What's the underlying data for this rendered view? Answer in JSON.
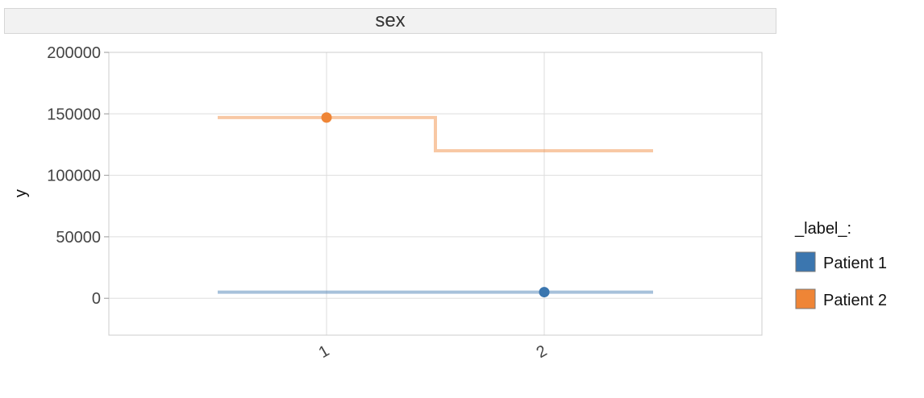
{
  "chart_data": {
    "type": "line",
    "facet_label": "sex",
    "ylabel": "y",
    "xlabel": "",
    "ylim": [
      -30000,
      200000
    ],
    "y_ticks": [
      "200000",
      "150000",
      "100000",
      "50000",
      "0"
    ],
    "y_tick_values": [
      200000,
      150000,
      100000,
      50000,
      0
    ],
    "x_ticks": [
      "1",
      "2"
    ],
    "x_tick_values": [
      1,
      2
    ],
    "xlim": [
      0,
      3
    ],
    "grid": true,
    "legend_title": "_label_:",
    "legend_position": "right",
    "series": [
      {
        "name": "Patient 1",
        "color": "#3b76af",
        "step_x": [
          0.5,
          2.5
        ],
        "step_y": [
          5000,
          5000
        ],
        "point": {
          "x": 2,
          "y": 5000
        }
      },
      {
        "name": "Patient 2",
        "color": "#ef8536",
        "step_x": [
          0.5,
          1.5,
          1.5,
          2.5
        ],
        "step_y": [
          147000,
          147000,
          120000,
          120000
        ],
        "point": {
          "x": 1,
          "y": 147000
        }
      }
    ]
  }
}
